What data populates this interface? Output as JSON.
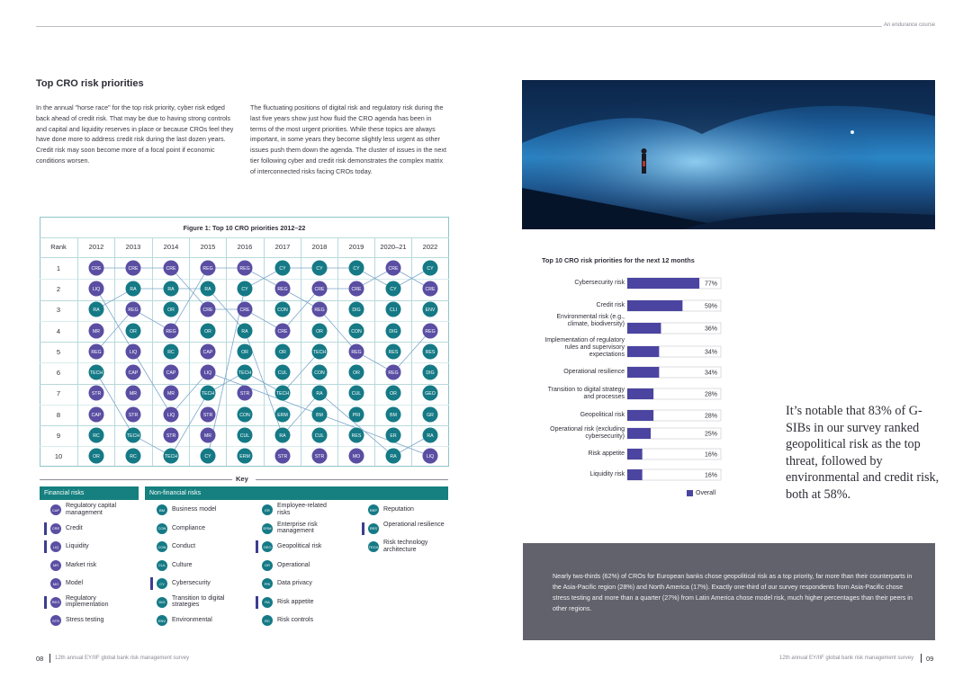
{
  "header": {
    "running_title": "An endurance course"
  },
  "left": {
    "heading": "Top CRO risk priorities",
    "para1": "In the annual \"horse race\" for the top risk priority, cyber risk edged back ahead of credit risk. That may be due to having strong controls and capital and liquidity reserves in place or because CROs feel they have done more to address credit risk during the last dozen years. Credit risk may soon become more of a focal point if economic conditions worsen.",
    "para2": "The fluctuating positions of digital risk and regulatory risk during the last five years show just how fluid the CRO agenda has been in terms of the most urgent priorities. While these topics are always important, in some years they become slightly less urgent as other issues push them down the agenda. The cluster of issues in the next tier following cyber and credit risk demonstrates the complex matrix of interconnected risks facing CROs today."
  },
  "figure1": {
    "title": "Figure 1: Top 10 CRO priorities 2012–22",
    "rank_header": "Rank",
    "years": [
      "2012",
      "2013",
      "2014",
      "2015",
      "2016",
      "2017",
      "2018",
      "2019",
      "2020–21",
      "2022"
    ],
    "ranks": [
      "1",
      "2",
      "3",
      "4",
      "5",
      "6",
      "7",
      "8",
      "9",
      "10"
    ],
    "grid": [
      [
        "CRE",
        "LIQ",
        "RA",
        "MR",
        "REG",
        "TECH",
        "STR",
        "CAP",
        "RC",
        "OR"
      ],
      [
        "CRE",
        "RA",
        "REG",
        "OR",
        "LIQ",
        "CAP",
        "MR",
        "STR",
        "TECH",
        "RC"
      ],
      [
        "CRE",
        "RA",
        "OR",
        "REG",
        "RC",
        "CAP",
        "MR",
        "LIQ",
        "STR",
        "TECH"
      ],
      [
        "REG",
        "RA",
        "CRE",
        "OR",
        "CAP",
        "LIQ",
        "TECH",
        "STR",
        "MR",
        "CY"
      ],
      [
        "REG",
        "CY",
        "CRE",
        "RA",
        "OR",
        "TECH",
        "STR",
        "CON",
        "CUL",
        "ERM"
      ],
      [
        "CY",
        "REG",
        "CON",
        "CRE",
        "OR",
        "CUL",
        "TECH",
        "ERM",
        "RA",
        "STR"
      ],
      [
        "CY",
        "CRE",
        "REG",
        "OR",
        "TECH",
        "CON",
        "RA",
        "BM",
        "CUL",
        "STR"
      ],
      [
        "CY",
        "CRE",
        "DIG",
        "CON",
        "REG",
        "OR",
        "CUL",
        "PRI",
        "RES",
        "MO"
      ],
      [
        "CRE",
        "CY",
        "CLI",
        "DIG",
        "RES",
        "REG",
        "OR",
        "BM",
        "ER",
        "RA"
      ],
      [
        "CY",
        "CRE",
        "ENV",
        "REG",
        "RES",
        "DIG",
        "GEO",
        "GR",
        "RA",
        "LIQ"
      ]
    ]
  },
  "key": {
    "title": "Key",
    "financial_header": "Financial risks",
    "nonfinancial_header": "Non-financial risks",
    "financial": [
      {
        "code": "CAP",
        "label": "Regulatory capital management",
        "bar": false
      },
      {
        "code": "CRE",
        "label": "Credit",
        "bar": true
      },
      {
        "code": "LIQ",
        "label": "Liquidity",
        "bar": true
      },
      {
        "code": "MR",
        "label": "Market risk",
        "bar": false
      },
      {
        "code": "MO",
        "label": "Model",
        "bar": false
      },
      {
        "code": "REG",
        "label": "Regulatory implementation",
        "bar": true
      },
      {
        "code": "STR",
        "label": "Stress testing",
        "bar": false
      }
    ],
    "nf_col1": [
      {
        "code": "BM",
        "label": "Business model",
        "bar": false
      },
      {
        "code": "CON",
        "label": "Compliance",
        "bar": false
      },
      {
        "code": "CON",
        "label": "Conduct",
        "bar": false
      },
      {
        "code": "CUL",
        "label": "Culture",
        "bar": false
      },
      {
        "code": "CY",
        "label": "Cybersecurity",
        "bar": true
      },
      {
        "code": "DIG",
        "label": "Transition to digital strategies",
        "bar": false
      },
      {
        "code": "ENV",
        "label": "Environmental",
        "bar": false
      }
    ],
    "nf_col2": [
      {
        "code": "ER",
        "label": "Employee-related risks",
        "bar": false
      },
      {
        "code": "ERM",
        "label": "Enterprise risk management",
        "bar": false
      },
      {
        "code": "GEO",
        "label": "Geopolitical risk",
        "bar": true
      },
      {
        "code": "OR",
        "label": "Operational",
        "bar": false
      },
      {
        "code": "PRI",
        "label": "Data privacy",
        "bar": false
      },
      {
        "code": "RA",
        "label": "Risk appetite",
        "bar": true
      },
      {
        "code": "RC",
        "label": "Risk controls",
        "bar": false
      }
    ],
    "nf_col3": [
      {
        "code": "REP",
        "label": "Reputation",
        "bar": false
      },
      {
        "code": "RES",
        "label": "Operational resilience",
        "bar": true
      },
      {
        "code": "TECH",
        "label": "Risk technology architecture",
        "bar": false
      }
    ]
  },
  "chart_data": {
    "type": "bar",
    "title": "Top 10 CRO risk priorities for the next 12 months",
    "categories": [
      "Cybersecurity risk",
      "Credit risk",
      "Environmental risk (e.g., climate, biodiversity)",
      "Implementation of regulatory rules and supervisory expectations",
      "Operational resilience",
      "Transition to digital strategy and processes",
      "Geopolitical risk",
      "Operational risk (excluding cybersecurity)",
      "Risk appetite",
      "Liquidity risk"
    ],
    "series": [
      {
        "name": "Overall",
        "values": [
          77,
          59,
          36,
          34,
          34,
          28,
          28,
          25,
          16,
          16
        ]
      }
    ],
    "value_labels": [
      "77%",
      "59%",
      "36%",
      "34%",
      "34%",
      "28%",
      "28%",
      "25%",
      "16%",
      "16%"
    ],
    "xlim": [
      0,
      100
    ],
    "legend_position": "bottom-right",
    "bar_color": "#4b45a1"
  },
  "quote": "It’s notable that 83% of G-SIBs in our survey ranked geopolitical risk as the top threat, followed by environmental and credit risk, both at 58%.",
  "callout": "Nearly two-thirds (62%) of CROs for European banks chose geopolitical risk as a top priority, far more than their counterparts in the Asia-Pacific region (28%) and North America (17%). Exactly one-third of our survey respondents from Asia-Pacific chose stress testing and more than a quarter (27%) from Latin America chose model risk, much higher percentages than their peers in other regions.",
  "footer": {
    "left_page": "08",
    "left_text": "12th annual EY/IIF global bank risk management survey",
    "right_text": "12th annual EY/IIF global bank risk management survey",
    "right_page": "09"
  }
}
